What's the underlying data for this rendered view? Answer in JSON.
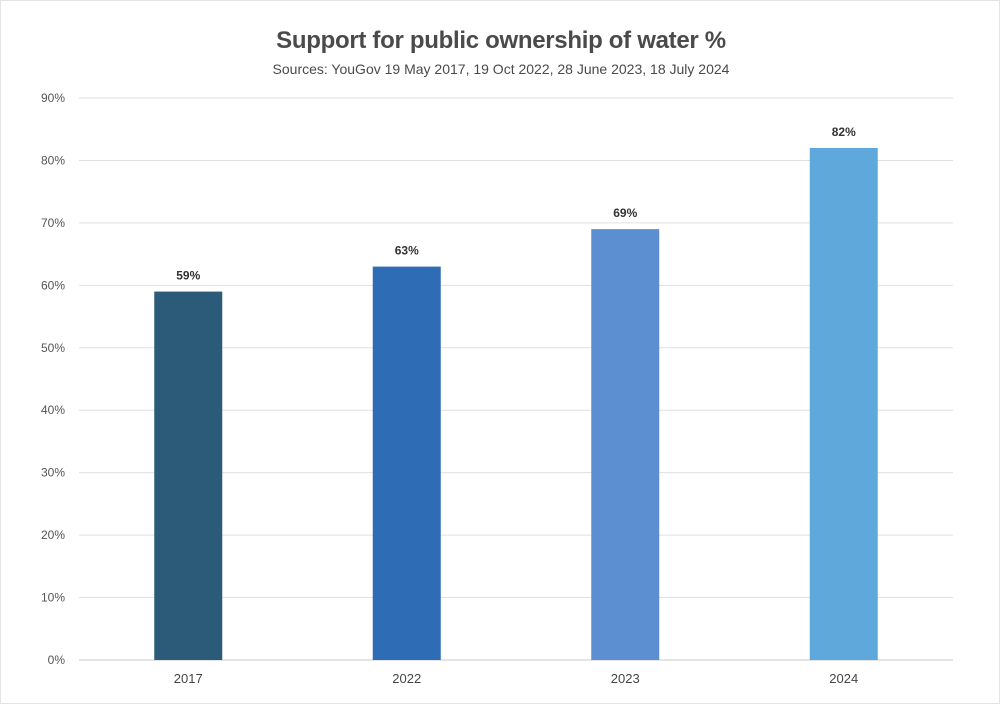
{
  "chart_data": {
    "type": "bar",
    "title": "Support for public ownership of water %",
    "subtitle": "Sources: YouGov 19 May 2017, 19 Oct 2022, 28 June 2023, 18 July 2024",
    "categories": [
      "2017",
      "2022",
      "2023",
      "2024"
    ],
    "values": [
      59,
      63,
      69,
      82
    ],
    "data_labels": [
      "59%",
      "63%",
      "69%",
      "82%"
    ],
    "bar_colors": [
      "#2c5b7a",
      "#2e6db5",
      "#5b8fd1",
      "#5fa8dc"
    ],
    "ylim": [
      0,
      90
    ],
    "yticks": [
      0,
      10,
      20,
      30,
      40,
      50,
      60,
      70,
      80,
      90
    ],
    "ytick_labels": [
      "0%",
      "10%",
      "20%",
      "30%",
      "40%",
      "50%",
      "60%",
      "70%",
      "80%",
      "90%"
    ],
    "xlabel": "",
    "ylabel": "",
    "grid": true,
    "legend": "none"
  }
}
